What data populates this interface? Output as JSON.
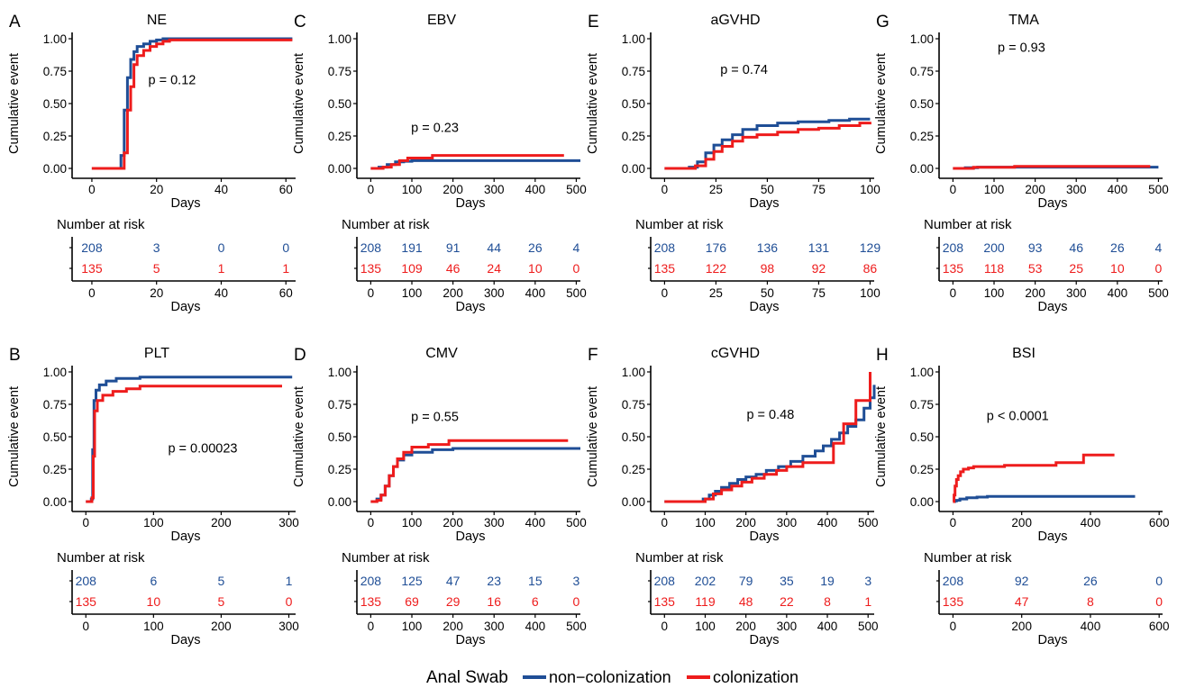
{
  "figure": {
    "colors": {
      "non_colonization": "#1f4e96",
      "colonization": "#ee1c1c"
    },
    "legend": {
      "title": "Anal Swab",
      "items": [
        {
          "label": "non−colonization",
          "color": "#1f4e96"
        },
        {
          "label": "colonization",
          "color": "#ee1c1c"
        }
      ]
    },
    "risk_table_title": "Number at risk",
    "x_axis_label": "Days",
    "y_axis_label": "Cumulative event"
  },
  "chart_data": [
    {
      "panel": "A",
      "title": "NE",
      "type": "line",
      "step": true,
      "xlabel": "Days",
      "ylabel": "Cumulative event",
      "xlim": [
        -5,
        63
      ],
      "xticks": [
        0,
        20,
        40,
        60
      ],
      "ylim": [
        0,
        1
      ],
      "yticks": [
        "0.00",
        "0.25",
        "0.50",
        "0.75",
        "1.00"
      ],
      "pvalue": "p = 0.12",
      "series": [
        {
          "name": "non−colonization",
          "x": [
            0,
            9,
            10,
            11,
            12,
            13,
            14,
            16,
            18,
            20,
            22,
            62
          ],
          "y": [
            0,
            0.1,
            0.45,
            0.7,
            0.84,
            0.9,
            0.94,
            0.96,
            0.98,
            0.99,
            1.0,
            1.0
          ]
        },
        {
          "name": "colonization",
          "x": [
            0,
            10,
            11,
            12,
            13,
            14,
            16,
            18,
            20,
            22,
            24,
            62
          ],
          "y": [
            0,
            0.12,
            0.45,
            0.63,
            0.8,
            0.87,
            0.91,
            0.94,
            0.96,
            0.98,
            0.99,
            0.99
          ]
        }
      ],
      "risk": {
        "x": [
          0,
          20,
          40,
          60
        ],
        "non_colonization": [
          "208",
          "3",
          "0",
          "0"
        ],
        "colonization": [
          "135",
          "5",
          "1",
          "1"
        ]
      }
    },
    {
      "panel": "B",
      "title": "PLT",
      "type": "line",
      "step": true,
      "xlabel": "Days",
      "ylabel": "Cumulative event",
      "xlim": [
        -15,
        310
      ],
      "xticks": [
        0,
        100,
        200,
        300
      ],
      "ylim": [
        0,
        1
      ],
      "yticks": [
        "0.00",
        "0.25",
        "0.50",
        "0.75",
        "1.00"
      ],
      "pvalue": "p = 0.00023",
      "series": [
        {
          "name": "non−colonization",
          "x": [
            0,
            8,
            10,
            12,
            15,
            20,
            30,
            45,
            80,
            305
          ],
          "y": [
            0,
            0.02,
            0.4,
            0.78,
            0.86,
            0.9,
            0.93,
            0.95,
            0.96,
            0.96
          ]
        },
        {
          "name": "colonization",
          "x": [
            0,
            9,
            11,
            13,
            17,
            25,
            40,
            60,
            80,
            290
          ],
          "y": [
            0,
            0.03,
            0.35,
            0.7,
            0.78,
            0.82,
            0.85,
            0.87,
            0.89,
            0.89
          ]
        }
      ],
      "risk": {
        "x": [
          0,
          100,
          200,
          300
        ],
        "non_colonization": [
          "208",
          "6",
          "5",
          "1"
        ],
        "colonization": [
          "135",
          "10",
          "5",
          "0"
        ]
      }
    },
    {
      "panel": "C",
      "title": "EBV",
      "type": "line",
      "step": true,
      "xlabel": "Days",
      "ylabel": "Cumulative event",
      "xlim": [
        -25,
        510
      ],
      "xticks": [
        0,
        100,
        200,
        300,
        400,
        500
      ],
      "ylim": [
        0,
        1
      ],
      "yticks": [
        "0.00",
        "0.25",
        "0.50",
        "0.75",
        "1.00"
      ],
      "pvalue": "p = 0.23",
      "series": [
        {
          "name": "non−colonization",
          "x": [
            0,
            20,
            40,
            60,
            80,
            100,
            510
          ],
          "y": [
            0,
            0.01,
            0.03,
            0.05,
            0.055,
            0.06,
            0.06
          ]
        },
        {
          "name": "colonization",
          "x": [
            0,
            30,
            50,
            70,
            90,
            150,
            470
          ],
          "y": [
            0,
            0.01,
            0.03,
            0.06,
            0.08,
            0.1,
            0.1
          ]
        }
      ],
      "risk": {
        "x": [
          0,
          100,
          200,
          300,
          400,
          500
        ],
        "non_colonization": [
          "208",
          "191",
          "91",
          "44",
          "26",
          "4"
        ],
        "colonization": [
          "135",
          "109",
          "46",
          "24",
          "10",
          "0"
        ]
      }
    },
    {
      "panel": "D",
      "title": "CMV",
      "type": "line",
      "step": true,
      "xlabel": "Days",
      "ylabel": "Cumulative event",
      "xlim": [
        -25,
        510
      ],
      "xticks": [
        0,
        100,
        200,
        300,
        400,
        500
      ],
      "ylim": [
        0,
        1
      ],
      "yticks": [
        "0.00",
        "0.25",
        "0.50",
        "0.75",
        "1.00"
      ],
      "pvalue": "p = 0.55",
      "series": [
        {
          "name": "non−colonization",
          "x": [
            0,
            15,
            25,
            35,
            45,
            55,
            65,
            80,
            100,
            150,
            200,
            510
          ],
          "y": [
            0,
            0.02,
            0.05,
            0.12,
            0.2,
            0.27,
            0.32,
            0.36,
            0.38,
            0.4,
            0.41,
            0.41
          ]
        },
        {
          "name": "colonization",
          "x": [
            0,
            15,
            25,
            35,
            45,
            55,
            65,
            80,
            100,
            140,
            190,
            480
          ],
          "y": [
            0,
            0.01,
            0.05,
            0.12,
            0.2,
            0.27,
            0.33,
            0.38,
            0.42,
            0.44,
            0.47,
            0.47
          ]
        }
      ],
      "risk": {
        "x": [
          0,
          100,
          200,
          300,
          400,
          500
        ],
        "non_colonization": [
          "208",
          "125",
          "47",
          "23",
          "15",
          "3"
        ],
        "colonization": [
          "135",
          "69",
          "29",
          "16",
          "6",
          "0"
        ]
      }
    },
    {
      "panel": "E",
      "title": "aGVHD",
      "type": "line",
      "step": true,
      "xlabel": "Days",
      "ylabel": "Cumulative event",
      "xlim": [
        -5,
        102
      ],
      "xticks": [
        0,
        25,
        50,
        75,
        100
      ],
      "ylim": [
        0,
        1
      ],
      "yticks": [
        "0.00",
        "0.25",
        "0.50",
        "0.75",
        "1.00"
      ],
      "pvalue": "p = 0.74",
      "series": [
        {
          "name": "non−colonization",
          "x": [
            0,
            12,
            16,
            20,
            24,
            28,
            33,
            38,
            45,
            55,
            65,
            80,
            90,
            100
          ],
          "y": [
            0,
            0.01,
            0.05,
            0.12,
            0.18,
            0.22,
            0.26,
            0.3,
            0.33,
            0.35,
            0.36,
            0.37,
            0.38,
            0.38
          ]
        },
        {
          "name": "colonization",
          "x": [
            0,
            15,
            20,
            24,
            28,
            33,
            38,
            45,
            55,
            65,
            75,
            85,
            95,
            100
          ],
          "y": [
            0,
            0.02,
            0.07,
            0.13,
            0.17,
            0.21,
            0.24,
            0.26,
            0.28,
            0.3,
            0.31,
            0.33,
            0.35,
            0.36
          ]
        }
      ],
      "risk": {
        "x": [
          0,
          25,
          50,
          75,
          100
        ],
        "non_colonization": [
          "208",
          "176",
          "136",
          "131",
          "129"
        ],
        "colonization": [
          "135",
          "122",
          "98",
          "92",
          "86"
        ]
      }
    },
    {
      "panel": "F",
      "title": "cGVHD",
      "type": "line",
      "step": true,
      "xlabel": "Days",
      "ylabel": "Cumulative event",
      "xlim": [
        -25,
        515
      ],
      "xticks": [
        0,
        100,
        200,
        300,
        400,
        500
      ],
      "ylim": [
        0,
        1
      ],
      "yticks": [
        "0.00",
        "0.25",
        "0.50",
        "0.75",
        "1.00"
      ],
      "pvalue": "p = 0.48",
      "series": [
        {
          "name": "non−colonization",
          "x": [
            0,
            95,
            110,
            125,
            140,
            160,
            180,
            200,
            225,
            250,
            280,
            310,
            340,
            370,
            390,
            410,
            430,
            450,
            470,
            490,
            505,
            515
          ],
          "y": [
            0,
            0.02,
            0.05,
            0.08,
            0.11,
            0.14,
            0.17,
            0.19,
            0.21,
            0.24,
            0.27,
            0.31,
            0.35,
            0.39,
            0.43,
            0.48,
            0.53,
            0.58,
            0.63,
            0.72,
            0.8,
            0.9
          ]
        },
        {
          "name": "colonization",
          "x": [
            0,
            100,
            120,
            140,
            165,
            190,
            215,
            245,
            275,
            300,
            340,
            380,
            415,
            440,
            470,
            495,
            505
          ],
          "y": [
            0,
            0.02,
            0.06,
            0.09,
            0.12,
            0.15,
            0.18,
            0.21,
            0.24,
            0.27,
            0.3,
            0.3,
            0.45,
            0.6,
            0.78,
            0.78,
            1.0
          ]
        }
      ],
      "risk": {
        "x": [
          0,
          100,
          200,
          300,
          400,
          500
        ],
        "non_colonization": [
          "208",
          "202",
          "79",
          "35",
          "19",
          "3"
        ],
        "colonization": [
          "135",
          "119",
          "48",
          "22",
          "8",
          "1"
        ]
      }
    },
    {
      "panel": "G",
      "title": "TMA",
      "type": "line",
      "step": true,
      "xlabel": "Days",
      "ylabel": "Cumulative event",
      "xlim": [
        -25,
        510
      ],
      "xticks": [
        0,
        100,
        200,
        300,
        400,
        500
      ],
      "ylim": [
        0,
        1
      ],
      "yticks": [
        "0.00",
        "0.25",
        "0.50",
        "0.75",
        "1.00"
      ],
      "pvalue": "p = 0.93",
      "series": [
        {
          "name": "non−colonization",
          "x": [
            0,
            30,
            60,
            500
          ],
          "y": [
            0,
            0.005,
            0.01,
            0.01
          ]
        },
        {
          "name": "colonization",
          "x": [
            0,
            50,
            150,
            480
          ],
          "y": [
            0,
            0.008,
            0.015,
            0.015
          ]
        }
      ],
      "risk": {
        "x": [
          0,
          100,
          200,
          300,
          400,
          500
        ],
        "non_colonization": [
          "208",
          "200",
          "93",
          "46",
          "26",
          "4"
        ],
        "colonization": [
          "135",
          "118",
          "53",
          "25",
          "10",
          "0"
        ]
      }
    },
    {
      "panel": "H",
      "title": "BSI",
      "type": "line",
      "step": true,
      "xlabel": "Days",
      "ylabel": "Cumulative event",
      "xlim": [
        -30,
        610
      ],
      "xticks": [
        0,
        200,
        400,
        600
      ],
      "ylim": [
        0,
        1
      ],
      "yticks": [
        "0.00",
        "0.25",
        "0.50",
        "0.75",
        "1.00"
      ],
      "pvalue": "p < 0.0001",
      "series": [
        {
          "name": "non−colonization",
          "x": [
            0,
            5,
            10,
            20,
            40,
            70,
            100,
            530
          ],
          "y": [
            0,
            0.005,
            0.01,
            0.02,
            0.03,
            0.035,
            0.04,
            0.04
          ]
        },
        {
          "name": "colonization",
          "x": [
            0,
            3,
            6,
            10,
            15,
            22,
            30,
            45,
            60,
            150,
            300,
            380,
            470
          ],
          "y": [
            0,
            0.05,
            0.12,
            0.17,
            0.2,
            0.23,
            0.25,
            0.26,
            0.27,
            0.28,
            0.3,
            0.36,
            0.36
          ]
        }
      ],
      "risk": {
        "x": [
          0,
          200,
          400,
          600
        ],
        "non_colonization": [
          "208",
          "92",
          "26",
          "0"
        ],
        "colonization": [
          "135",
          "47",
          "8",
          "0"
        ]
      }
    }
  ]
}
